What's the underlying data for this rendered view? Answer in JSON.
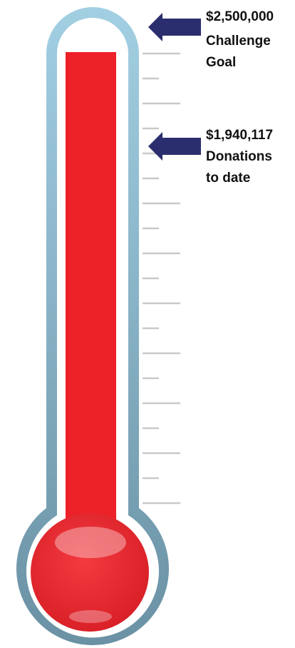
{
  "goal": {
    "amount": "$2,500,000",
    "lines": [
      "Challenge",
      "Goal"
    ]
  },
  "donations": {
    "amount": "$1,940,117",
    "lines": [
      "Donations",
      "to date"
    ]
  }
}
